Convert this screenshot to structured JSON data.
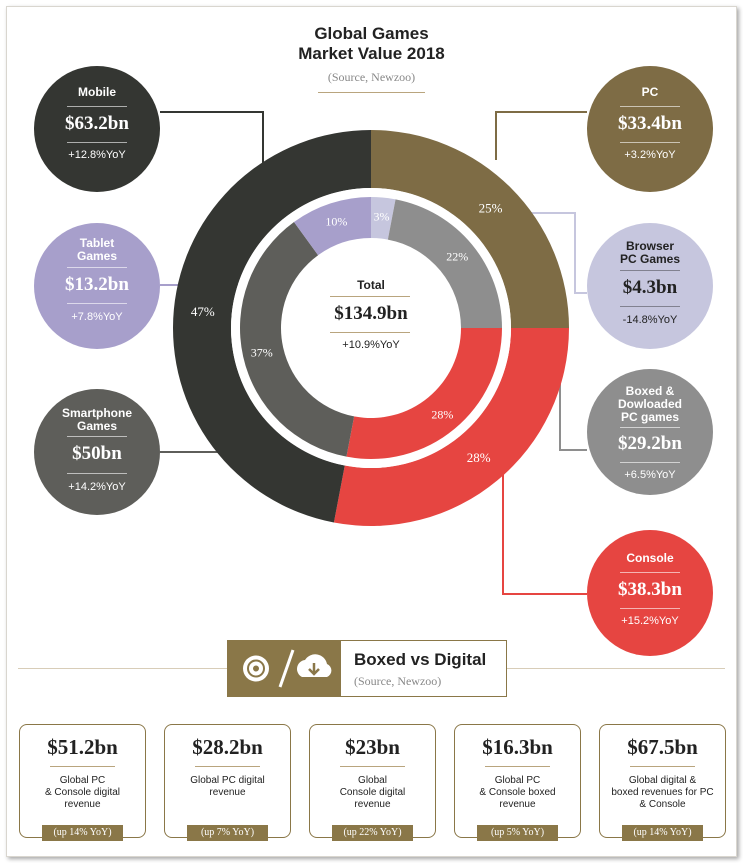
{
  "header": {
    "title_line1": "Global Games",
    "title_line2": "Market Value 2018",
    "source": "(Source, Newzoo)"
  },
  "colors": {
    "mobile": "#343632",
    "pc": "#7e6c45",
    "console": "#e64541",
    "tablet": "#a79fcb",
    "browser": "#c6c6de",
    "smartphone": "#5e5e5a",
    "boxed": "#8e8e8e",
    "accent": "#8a7748"
  },
  "chart_data": {
    "type": "pie",
    "title": "Global Games Market Value 2018",
    "total": {
      "label": "Total",
      "value": "$134.9bn",
      "yoy": "+10.9%YoY"
    },
    "outer_ring": [
      {
        "name": "PC",
        "percent": 25,
        "label": "25%",
        "value": "$33.4bn",
        "yoy": "+3.2%YoY"
      },
      {
        "name": "Console",
        "percent": 28,
        "label": "28%",
        "value": "$38.3bn",
        "yoy": "+15.2%YoY"
      },
      {
        "name": "Mobile",
        "percent": 47,
        "label": "47%",
        "value": "$63.2bn",
        "yoy": "+12.8%YoY"
      }
    ],
    "inner_ring": [
      {
        "name": "Browser PC Games",
        "percent": 3,
        "label": "3%",
        "value": "$4.3bn",
        "yoy": "-14.8%YoY"
      },
      {
        "name": "Boxed & Dowloaded PC games",
        "percent": 22,
        "label": "22%",
        "value": "$29.2bn",
        "yoy": "+6.5%YoY"
      },
      {
        "name": "Console",
        "percent": 28,
        "label": "28%",
        "value": "$38.3bn",
        "yoy": "+15.2%YoY"
      },
      {
        "name": "Smartphone Games",
        "percent": 37,
        "label": "37%",
        "value": "$50bn",
        "yoy": "+14.2%YoY"
      },
      {
        "name": "Tablet Games",
        "percent": 10,
        "label": "10%",
        "value": "$13.2bn",
        "yoy": "+7.8%YoY"
      }
    ]
  },
  "bubbles": {
    "mobile": {
      "name": "Mobile",
      "value": "$63.2bn",
      "yoy": "+12.8%YoY"
    },
    "tablet": {
      "name1": "Tablet",
      "name2": "Games",
      "value": "$13.2bn",
      "yoy": "+7.8%YoY"
    },
    "smartphone": {
      "name1": "Smartphone",
      "name2": "Games",
      "value": "$50bn",
      "yoy": "+14.2%YoY"
    },
    "pc": {
      "name": "PC",
      "value": "$33.4bn",
      "yoy": "+3.2%YoY"
    },
    "browser": {
      "name1": "Browser",
      "name2": "PC Games",
      "value": "$4.3bn",
      "yoy": "-14.8%YoY"
    },
    "boxed": {
      "name1": "Boxed &",
      "name2": "Dowloaded",
      "name3": "PC games",
      "value": "$29.2bn",
      "yoy": "+6.5%YoY"
    },
    "console": {
      "name": "Console",
      "value": "$38.3bn",
      "yoy": "+15.2%YoY"
    }
  },
  "boxed_vs_digital": {
    "title": "Boxed vs Digital",
    "source": "(Source, Newzoo)",
    "icons": [
      "disc-icon",
      "cloud-download-icon"
    ],
    "cards": [
      {
        "value": "$51.2bn",
        "line1": "Global PC",
        "line2": "& Console digital",
        "line3": "revenue",
        "yoy": "(up 14% YoY)"
      },
      {
        "value": "$28.2bn",
        "line1": "Global PC digital",
        "line2": "revenue",
        "line3": "",
        "yoy": "(up 7% YoY)"
      },
      {
        "value": "$23bn",
        "line1": "Global",
        "line2": "Console digital",
        "line3": "revenue",
        "yoy": "(up 22% YoY)"
      },
      {
        "value": "$16.3bn",
        "line1": "Global PC",
        "line2": "& Console boxed",
        "line3": "revenue",
        "yoy": "(up 5% YoY)"
      },
      {
        "value": "$67.5bn",
        "line1": "Global digital &",
        "line2": "boxed revenues for PC",
        "line3": "& Console",
        "yoy": "(up 14% YoY)"
      }
    ]
  }
}
